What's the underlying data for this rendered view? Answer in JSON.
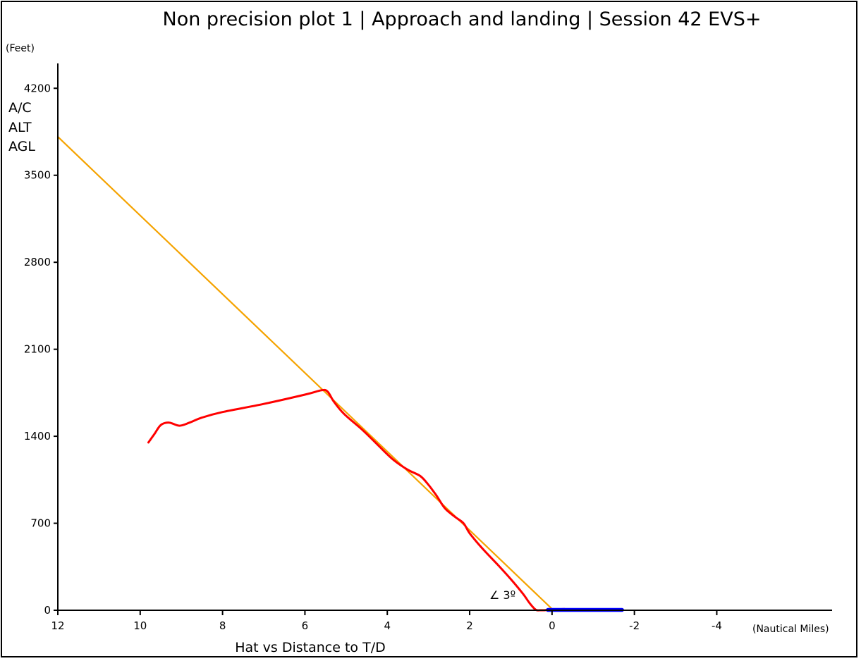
{
  "chart_data": {
    "type": "line",
    "title": "Non precision plot 1 | Approach and landing | Session 42 EVS+",
    "y_unit": "(Feet)",
    "x_unit": "(Nautical Miles)",
    "xlabel": "Hat vs Distance to T/D",
    "ylabel_lines": [
      "A/C",
      "ALT",
      "AGL"
    ],
    "annotation": "∠ 3º",
    "xlim": [
      12,
      -6.8
    ],
    "ylim": [
      0,
      4400
    ],
    "x_ticks": [
      12,
      10,
      8,
      6,
      4,
      2,
      0,
      -2,
      -4
    ],
    "x_tick_labels": [
      "12",
      "10",
      "8",
      "6",
      "4",
      "2",
      "0",
      "-2",
      "-4"
    ],
    "y_ticks": [
      0,
      700,
      1400,
      2100,
      2800,
      3500,
      4200
    ],
    "y_tick_labels": [
      "0",
      "700",
      "1400",
      "2100",
      "2800",
      "3500",
      "4200"
    ],
    "series": [
      {
        "key": "glidepath",
        "color": "#f5a300",
        "width": 2.2,
        "points": [
          [
            12,
            3810
          ],
          [
            0,
            10
          ]
        ]
      },
      {
        "key": "aircraft",
        "color": "#ff0000",
        "width": 3,
        "points": [
          [
            9.8,
            1350
          ],
          [
            9.65,
            1420
          ],
          [
            9.5,
            1490
          ],
          [
            9.3,
            1510
          ],
          [
            9.05,
            1485
          ],
          [
            8.8,
            1510
          ],
          [
            8.5,
            1550
          ],
          [
            8.0,
            1595
          ],
          [
            7.0,
            1660
          ],
          [
            6.0,
            1735
          ],
          [
            5.6,
            1770
          ],
          [
            5.45,
            1760
          ],
          [
            5.3,
            1680
          ],
          [
            5.05,
            1580
          ],
          [
            4.6,
            1450
          ],
          [
            4.2,
            1320
          ],
          [
            3.85,
            1210
          ],
          [
            3.5,
            1130
          ],
          [
            3.2,
            1080
          ],
          [
            3.0,
            1010
          ],
          [
            2.8,
            920
          ],
          [
            2.6,
            820
          ],
          [
            2.35,
            750
          ],
          [
            2.15,
            700
          ],
          [
            2.0,
            620
          ],
          [
            1.7,
            500
          ],
          [
            1.3,
            360
          ],
          [
            1.0,
            250
          ],
          [
            0.7,
            130
          ],
          [
            0.55,
            60
          ],
          [
            0.4,
            5
          ],
          [
            0.3,
            0
          ],
          [
            0.2,
            0
          ],
          [
            0.0,
            5
          ],
          [
            -0.3,
            10
          ]
        ]
      },
      {
        "key": "runway",
        "color": "#0000ff",
        "width": 5.5,
        "points": [
          [
            0.1,
            3
          ],
          [
            -1.7,
            3
          ]
        ]
      }
    ]
  }
}
